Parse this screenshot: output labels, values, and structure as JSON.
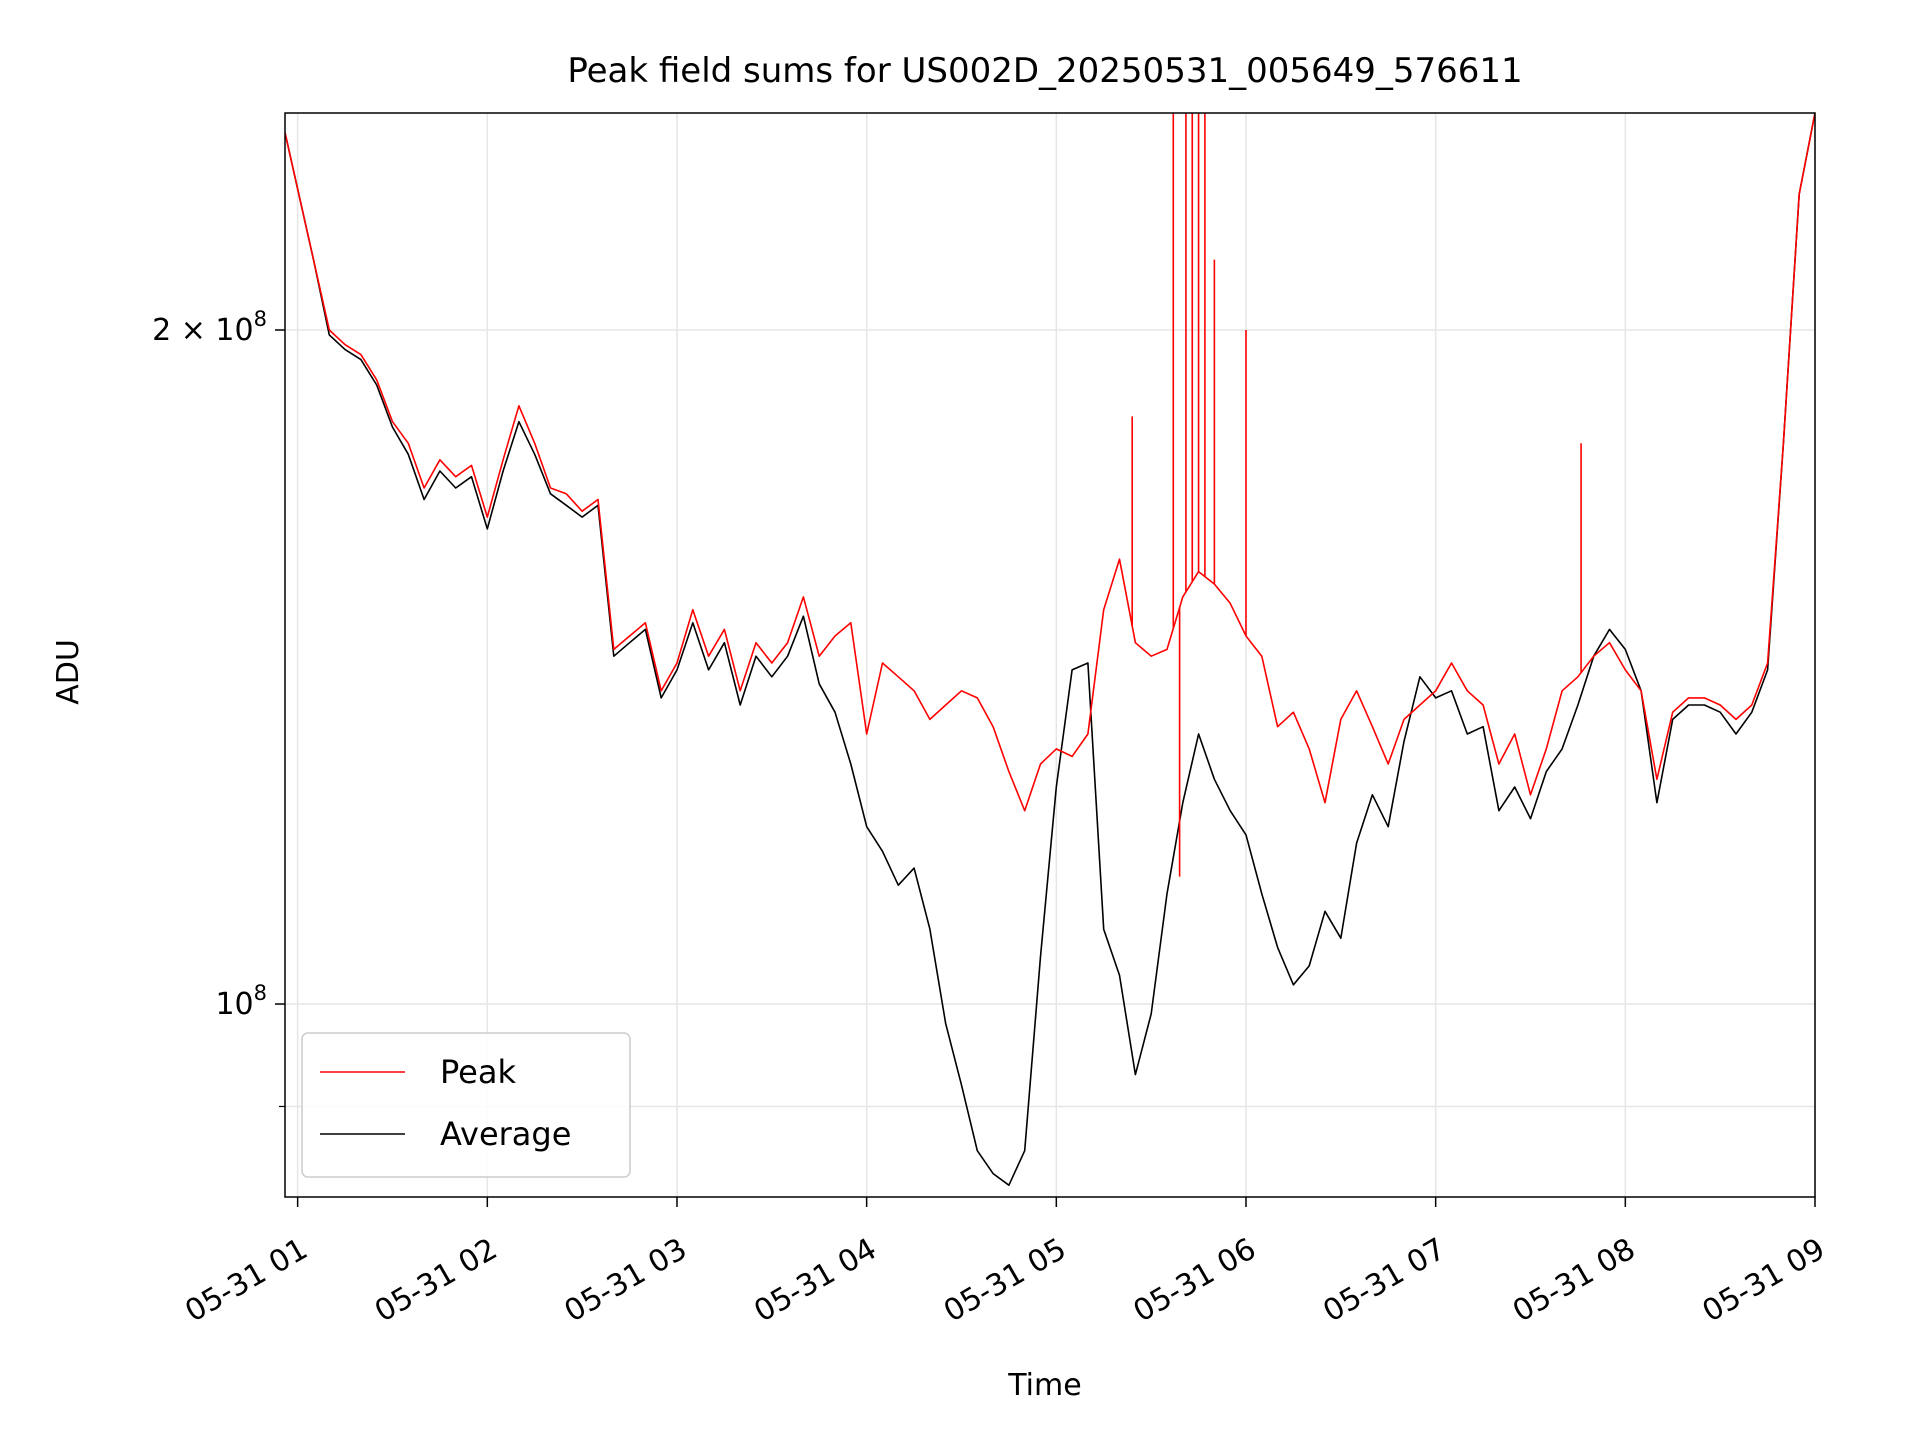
{
  "chart_data": {
    "type": "line",
    "title": "Peak field sums for US002D_20250531_005649_576611",
    "xlabel": "Time",
    "ylabel": "ADU",
    "y_scale": "log",
    "ylim": [
      82000000,
      250000000
    ],
    "xlim": [
      "2025-05-31 00:56",
      "2025-05-31 09:00"
    ],
    "x_ticks": [
      "05-31 01",
      "05-31 02",
      "05-31 03",
      "05-31 04",
      "05-31 05",
      "05-31 06",
      "05-31 07",
      "05-31 08",
      "05-31 09"
    ],
    "y_ticks": [
      {
        "value": 100000000,
        "base": "10",
        "exp": "8",
        "coef": ""
      },
      {
        "value": 200000000,
        "base": "10",
        "exp": "8",
        "coef": "2"
      }
    ],
    "grid": true,
    "legend_position": "lower-left",
    "x": [
      "00:56",
      "01:05",
      "01:10",
      "01:15",
      "01:20",
      "01:25",
      "01:30",
      "01:35",
      "01:40",
      "01:45",
      "01:50",
      "01:55",
      "02:00",
      "02:05",
      "02:10",
      "02:15",
      "02:20",
      "02:25",
      "02:30",
      "02:35",
      "02:40",
      "02:45",
      "02:50",
      "02:55",
      "03:00",
      "03:05",
      "03:10",
      "03:15",
      "03:20",
      "03:25",
      "03:30",
      "03:35",
      "03:40",
      "03:45",
      "03:50",
      "03:55",
      "04:00",
      "04:05",
      "04:10",
      "04:15",
      "04:20",
      "04:25",
      "04:30",
      "04:35",
      "04:40",
      "04:45",
      "04:50",
      "04:55",
      "05:00",
      "05:05",
      "05:10",
      "05:15",
      "05:20",
      "05:25",
      "05:30",
      "05:35",
      "05:40",
      "05:45",
      "05:50",
      "05:55",
      "06:00",
      "06:05",
      "06:10",
      "06:15",
      "06:20",
      "06:25",
      "06:30",
      "06:35",
      "06:40",
      "06:45",
      "06:50",
      "06:55",
      "07:00",
      "07:05",
      "07:10",
      "07:15",
      "07:20",
      "07:25",
      "07:30",
      "07:35",
      "07:40",
      "07:45",
      "07:50",
      "07:55",
      "08:00",
      "08:05",
      "08:10",
      "08:15",
      "08:20",
      "08:25",
      "08:30",
      "08:35",
      "08:40",
      "08:45",
      "08:50",
      "08:55",
      "09:00"
    ],
    "series": [
      {
        "name": "Peak",
        "color": "#ff0000",
        "values": [
          245000000,
          215000000,
          200000000,
          197000000,
          195000000,
          190000000,
          182000000,
          178000000,
          170000000,
          175000000,
          172000000,
          174000000,
          165000000,
          175000000,
          185000000,
          178000000,
          170000000,
          169000000,
          166000000,
          168000000,
          144000000,
          146000000,
          148000000,
          138000000,
          142000000,
          150000000,
          143000000,
          147000000,
          138000000,
          145000000,
          142000000,
          145000000,
          152000000,
          143000000,
          146000000,
          148000000,
          132000000,
          142000000,
          140000000,
          138000000,
          134000000,
          136000000,
          138000000,
          137000000,
          133000000,
          127000000,
          122000000,
          128000000,
          130000000,
          129000000,
          132000000,
          150000000,
          158000000,
          145000000,
          143000000,
          144000000,
          152000000,
          156000000,
          154000000,
          151000000,
          146000000,
          143000000,
          133000000,
          135000000,
          130000000,
          123000000,
          134000000,
          138000000,
          133000000,
          128000000,
          134000000,
          136000000,
          138000000,
          142000000,
          138000000,
          136000000,
          128000000,
          132000000,
          124000000,
          130000000,
          138000000,
          140000000,
          143000000,
          145000000,
          141000000,
          138000000,
          126000000,
          135000000,
          137000000,
          137000000,
          136000000,
          134000000,
          136000000,
          142000000,
          178000000,
          230000000,
          250000000
        ]
      },
      {
        "name": "Average",
        "color": "#000000",
        "values": [
          245000000,
          215000000,
          199000000,
          196000000,
          194000000,
          189000000,
          181000000,
          176000000,
          168000000,
          173000000,
          170000000,
          172000000,
          163000000,
          173000000,
          182000000,
          176000000,
          169000000,
          167000000,
          165000000,
          167000000,
          143000000,
          145000000,
          147000000,
          137000000,
          141000000,
          148000000,
          141000000,
          145000000,
          136000000,
          143000000,
          140000000,
          143000000,
          149000000,
          139000000,
          135000000,
          128000000,
          120000000,
          117000000,
          113000000,
          115000000,
          108000000,
          98000000,
          92000000,
          86000000,
          84000000,
          83000000,
          86000000,
          105000000,
          125000000,
          141000000,
          142000000,
          108000000,
          103000000,
          93000000,
          99000000,
          112000000,
          123000000,
          132000000,
          126000000,
          122000000,
          119000000,
          112000000,
          106000000,
          102000000,
          104000000,
          110000000,
          107000000,
          118000000,
          124000000,
          120000000,
          131000000,
          140000000,
          137000000,
          138000000,
          132000000,
          133000000,
          122000000,
          125000000,
          121000000,
          127000000,
          130000000,
          136000000,
          143000000,
          147000000,
          144000000,
          138000000,
          123000000,
          134000000,
          136000000,
          136000000,
          135000000,
          132000000,
          135000000,
          141000000,
          178000000,
          230000000,
          250000000
        ]
      }
    ],
    "spikes": [
      {
        "series": "Peak",
        "x": "05:24",
        "value": 183000000
      },
      {
        "series": "Peak",
        "x": "05:37",
        "value": 250000000
      },
      {
        "series": "Peak",
        "x": "05:39",
        "value": 114000000
      },
      {
        "series": "Peak",
        "x": "05:41",
        "value": 250000000
      },
      {
        "series": "Peak",
        "x": "05:43",
        "value": 250000000
      },
      {
        "series": "Peak",
        "x": "05:45",
        "value": 250000000
      },
      {
        "series": "Peak",
        "x": "05:47",
        "value": 250000000
      },
      {
        "series": "Peak",
        "x": "05:50",
        "value": 215000000
      },
      {
        "series": "Peak",
        "x": "06:00",
        "value": 200000000
      },
      {
        "series": "Peak",
        "x": "07:46",
        "value": 178000000
      }
    ]
  }
}
